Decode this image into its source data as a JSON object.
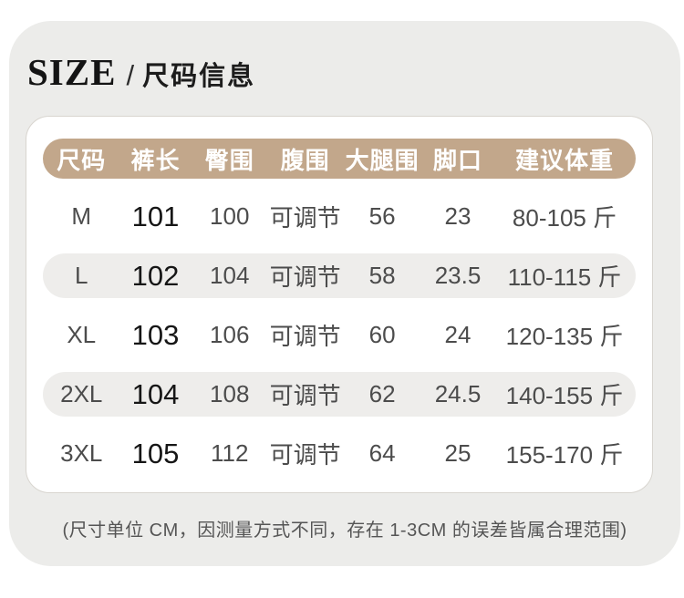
{
  "header": {
    "title_en": "SIZE",
    "divider": "/",
    "title_zh": "尺码信息"
  },
  "chart_data": {
    "type": "table",
    "title": "SIZE / 尺码信息",
    "columns": [
      "尺码",
      "裤长",
      "臀围",
      "腹围",
      "大腿围",
      "脚口",
      "建议体重"
    ],
    "rows": [
      [
        "M",
        "101",
        "100",
        "可调节",
        "56",
        "23",
        "80-105 斤"
      ],
      [
        "L",
        "102",
        "104",
        "可调节",
        "58",
        "23.5",
        "110-115 斤"
      ],
      [
        "XL",
        "103",
        "106",
        "可调节",
        "60",
        "24",
        "120-135 斤"
      ],
      [
        "2XL",
        "104",
        "108",
        "可调节",
        "62",
        "24.5",
        "140-155 斤"
      ],
      [
        "3XL",
        "105",
        "112",
        "可调节",
        "64",
        "25",
        "155-170 斤"
      ]
    ]
  },
  "footer": {
    "note": "(尺寸单位 CM，因测量方式不同，存在 1-3CM 的误差皆属合理范围)"
  },
  "colors": {
    "panel_bg": "#ececea",
    "card_bg": "#ffffff",
    "card_border": "#d8d5cf",
    "header_pill": "#c2a78b",
    "header_text": "#ffffff",
    "zebra_bg": "#eeedeb",
    "value_text": "#4c4c4c",
    "pants_length_text": "#161616",
    "note_text": "#555555"
  }
}
